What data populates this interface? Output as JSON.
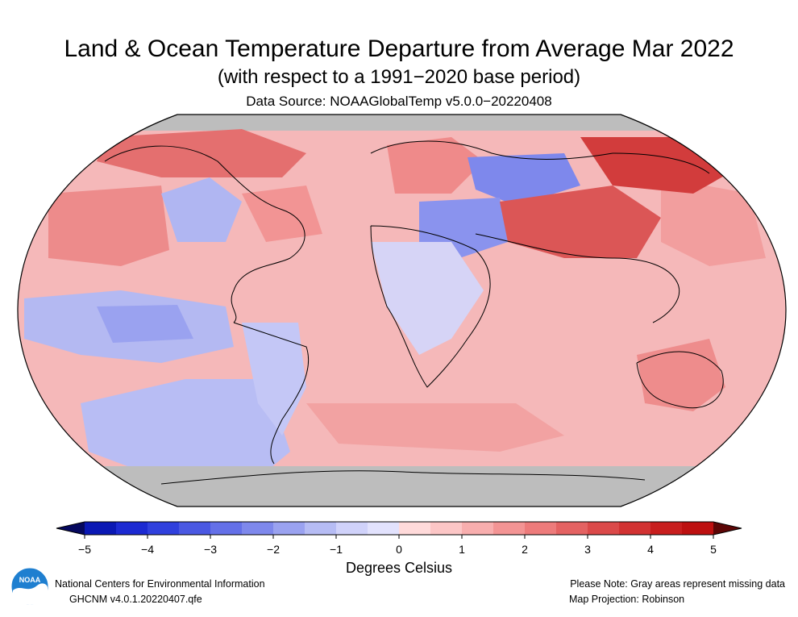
{
  "title": "Land & Ocean Temperature Departure from Average Mar 2022",
  "subtitle": "(with respect to a 1991−2020 base period)",
  "source": "Data Source: NOAAGlobalTemp v5.0.0−20220408",
  "colorbar": {
    "label": "Degrees Celsius",
    "ticks": [
      "−5",
      "−4",
      "−3",
      "−2",
      "−1",
      "0",
      "1",
      "2",
      "3",
      "4",
      "5"
    ],
    "range": [
      -5,
      5
    ],
    "colors": [
      "#0a18b4",
      "#1c2ad2",
      "#3040dd",
      "#4a58e2",
      "#6470e8",
      "#7e88ec",
      "#9aa2f0",
      "#b6bcf4",
      "#d0d2fa",
      "#e2e2fd",
      "#ffdada",
      "#fcc6c6",
      "#f8aeae",
      "#f39494",
      "#ed7b7b",
      "#e46262",
      "#db4949",
      "#d23232",
      "#c81e1e",
      "#bd1010"
    ]
  },
  "legend_colors": {
    "missing": "#bdbdbd",
    "ocean_background": "#f5b8b9",
    "coastline": "#000000"
  },
  "footer": {
    "agency": "National Centers for Environmental Information",
    "dataset": "GHCNM v4.0.1.20220407.qfe",
    "note": "Please Note: Gray areas represent missing data",
    "projection": "Map Projection: Robinson"
  },
  "logo_text": "NOAA",
  "regions": [
    {
      "name": "north-pacific-warm",
      "anomaly": 2.2
    },
    {
      "name": "tropical-east-pacific-cool",
      "anomaly": -1.5
    },
    {
      "name": "western-north-america-cool",
      "anomaly": -1.2
    },
    {
      "name": "eastern-canada-warm",
      "anomaly": 1.8
    },
    {
      "name": "europe-warm",
      "anomaly": 2.0
    },
    {
      "name": "western-russia-cool",
      "anomaly": -2.8
    },
    {
      "name": "middle-east-cool",
      "anomaly": -2.3
    },
    {
      "name": "central-asia-warm",
      "anomaly": 3.2
    },
    {
      "name": "northeast-siberia-warm",
      "anomaly": 3.8
    },
    {
      "name": "australia-warm",
      "anomaly": 1.9
    },
    {
      "name": "south-america-cool",
      "anomaly": -1.0
    },
    {
      "name": "southeast-pacific-cool",
      "anomaly": -1.2
    },
    {
      "name": "southern-ocean-warm",
      "anomaly": 1.3
    },
    {
      "name": "arctic-greenland-warm",
      "anomaly": 3.5
    }
  ]
}
